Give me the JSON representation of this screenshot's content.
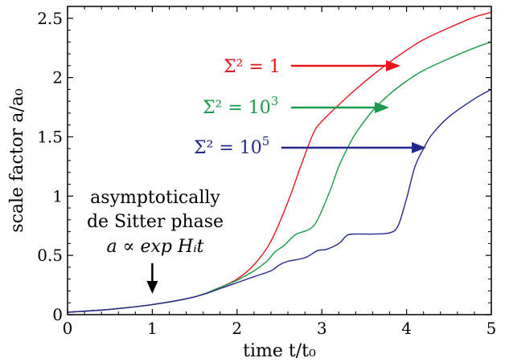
{
  "chart_data": {
    "type": "line",
    "xlabel": "time t/t₀",
    "ylabel": "scale factor a/a₀",
    "xlim": [
      0,
      5
    ],
    "ylim": [
      0,
      2.6
    ],
    "x_ticks": [
      0,
      1,
      2,
      3,
      4,
      5
    ],
    "y_ticks": [
      0,
      0.5,
      1,
      1.5,
      2,
      2.5
    ],
    "x_tick_labels": [
      "0",
      "1",
      "2",
      "3",
      "4",
      "5"
    ],
    "y_tick_labels": [
      "0",
      "0.5",
      "1",
      "1.5",
      "2",
      "2.5"
    ],
    "grid": false,
    "series": [
      {
        "name": "Σ² = 1",
        "color": "#e8141b",
        "x": [
          0,
          0.5,
          1.0,
          1.5,
          1.8,
          2.0,
          2.2,
          2.4,
          2.6,
          2.75,
          2.9,
          3.0,
          3.2,
          3.4,
          3.6,
          3.8,
          4.0,
          4.2,
          4.5,
          4.8,
          5.0
        ],
        "y": [
          0.02,
          0.045,
          0.085,
          0.15,
          0.23,
          0.3,
          0.42,
          0.62,
          0.95,
          1.25,
          1.53,
          1.63,
          1.77,
          1.9,
          2.02,
          2.13,
          2.23,
          2.32,
          2.42,
          2.51,
          2.55
        ]
      },
      {
        "name": "Σ² = 10³",
        "color": "#1a9a4a",
        "x": [
          0,
          0.5,
          1.0,
          1.5,
          1.8,
          2.0,
          2.2,
          2.35,
          2.45,
          2.55,
          2.62,
          2.7,
          2.85,
          2.95,
          3.1,
          3.2,
          3.3,
          3.4,
          3.6,
          3.8,
          4.0,
          4.2,
          4.5,
          4.8,
          5.0
        ],
        "y": [
          0.02,
          0.045,
          0.085,
          0.15,
          0.23,
          0.29,
          0.37,
          0.45,
          0.53,
          0.58,
          0.63,
          0.68,
          0.72,
          0.8,
          1.05,
          1.25,
          1.4,
          1.53,
          1.72,
          1.86,
          1.97,
          2.06,
          2.16,
          2.25,
          2.3
        ]
      },
      {
        "name": "Σ² = 10⁵",
        "color": "#24288a",
        "x": [
          0,
          0.5,
          1.0,
          1.5,
          1.8,
          2.0,
          2.2,
          2.4,
          2.5,
          2.6,
          2.8,
          2.95,
          3.05,
          3.2,
          3.3,
          3.4,
          3.6,
          3.8,
          3.9,
          4.0,
          4.1,
          4.2,
          4.3,
          4.5,
          4.8,
          5.0
        ],
        "y": [
          0.02,
          0.045,
          0.085,
          0.15,
          0.22,
          0.27,
          0.32,
          0.37,
          0.42,
          0.45,
          0.48,
          0.54,
          0.55,
          0.6,
          0.67,
          0.68,
          0.68,
          0.69,
          0.75,
          0.98,
          1.25,
          1.4,
          1.52,
          1.67,
          1.82,
          1.9
        ]
      }
    ],
    "annotations": {
      "label_sigma1": "Σ² = 1",
      "label_sigma1e3_base": "Σ² = 10",
      "label_sigma1e3_exp": "3",
      "label_sigma1e5_base": "Σ² = 10",
      "label_sigma1e5_exp": "5",
      "desitter_line1": "asymptotically",
      "desitter_line2": "de Sitter phase",
      "desitter_line3": "a ∝ exp Hᵢt",
      "desitter_arrow_x": 1.0
    }
  }
}
